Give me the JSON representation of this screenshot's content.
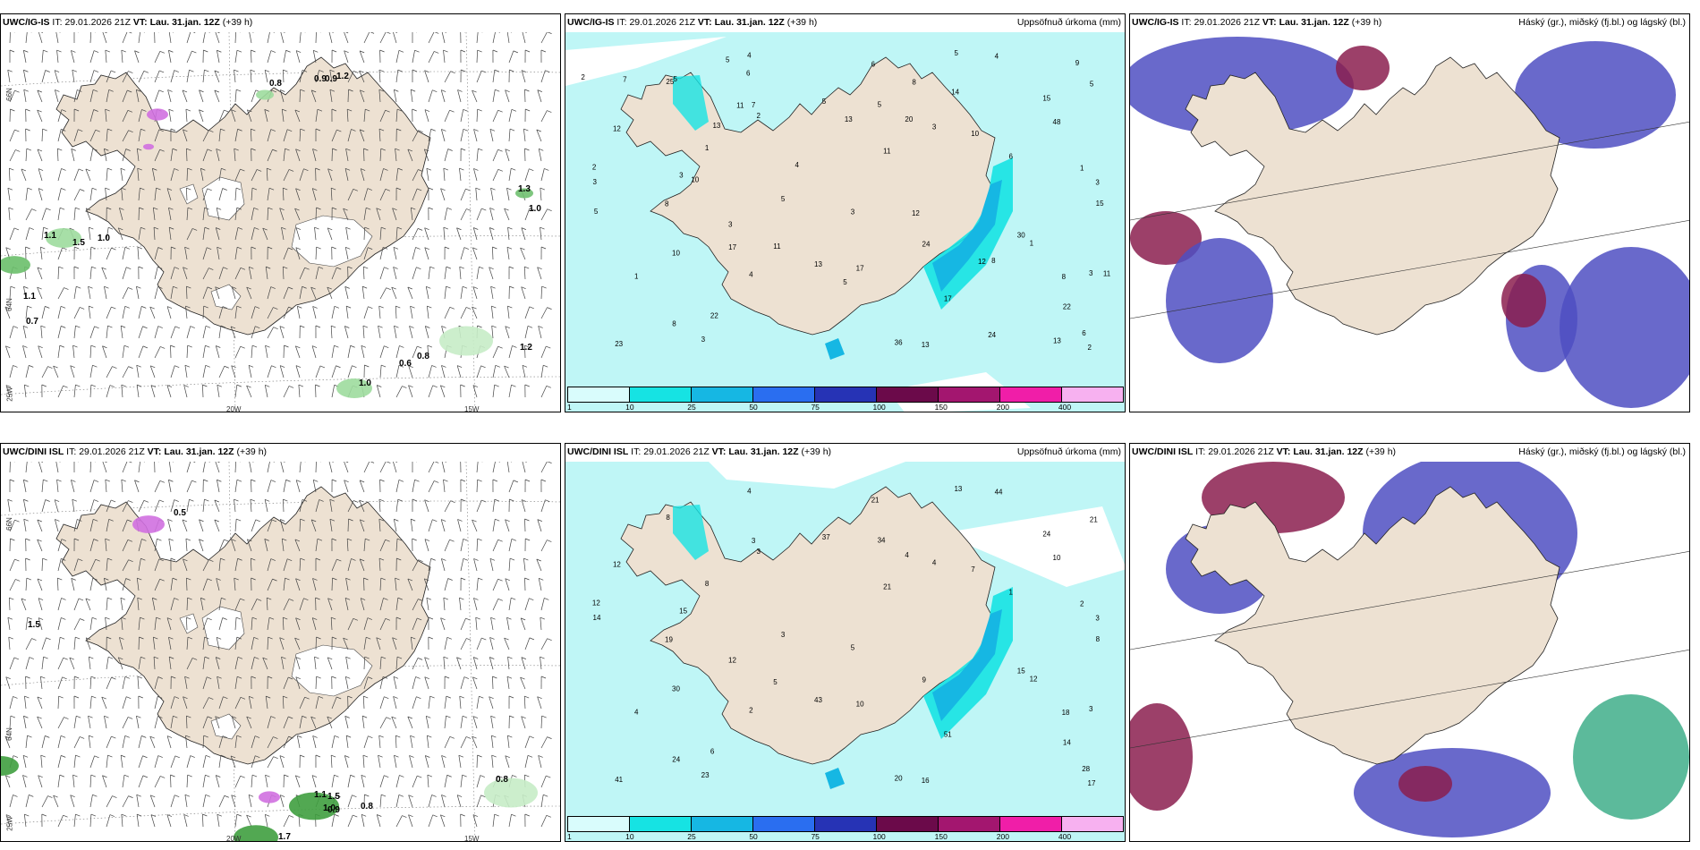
{
  "panels": [
    {
      "id": "p1",
      "model": "UWC/IG-IS",
      "it_label": "IT:",
      "it": "29.01.2026 21Z",
      "vt_label": "VT:",
      "vt": "Lau. 31.jan. 12Z",
      "lead": "(+39 h)",
      "right_title": "",
      "type": "wind"
    },
    {
      "id": "p2",
      "model": "UWC/IG-IS",
      "it_label": "IT:",
      "it": "29.01.2026 21Z",
      "vt_label": "VT:",
      "vt": "Lau. 31.jan. 12Z",
      "lead": "(+39 h)",
      "right_title": "Uppsöfnuð úrkoma (mm)",
      "type": "precip"
    },
    {
      "id": "p3",
      "model": "UWC/IG-IS",
      "it_label": "IT:",
      "it": "29.01.2026 21Z",
      "vt_label": "VT:",
      "vt": "Lau. 31.jan. 12Z",
      "lead": "(+39 h)",
      "right_title": "Háský (gr.), miðský (fj.bl.) og lágský (bl.)",
      "type": "cloud"
    },
    {
      "id": "p4",
      "model": "UWC/DINI ISL",
      "it_label": "IT:",
      "it": "29.01.2026 21Z",
      "vt_label": "VT:",
      "vt": "Lau. 31.jan. 12Z",
      "lead": "(+39 h)",
      "right_title": "",
      "type": "wind"
    },
    {
      "id": "p5",
      "model": "UWC/DINI ISL",
      "it_label": "IT:",
      "it": "29.01.2026 21Z",
      "vt_label": "VT:",
      "vt": "Lau. 31.jan. 12Z",
      "lead": "(+39 h)",
      "right_title": "Uppsöfnuð úrkoma (mm)",
      "type": "precip"
    },
    {
      "id": "p6",
      "model": "UWC/DINI ISL",
      "it_label": "IT:",
      "it": "29.01.2026 21Z",
      "vt_label": "VT:",
      "vt": "Lau. 31.jan. 12Z",
      "lead": "(+39 h)",
      "right_title": "Háský (gr.), miðský (fj.bl.) og lágský (bl.)",
      "type": "cloud"
    }
  ],
  "axis_labels": {
    "lat66": "66N",
    "lat64": "64N",
    "lon25": "25W",
    "lon20": "20W",
    "lon15": "15W"
  },
  "colorbar": {
    "levels": [
      "1",
      "10",
      "25",
      "50",
      "75",
      "100",
      "150",
      "200",
      "400"
    ],
    "colors": [
      "#d9fcfc",
      "#16e3e3",
      "#16b7e3",
      "#2a6ef0",
      "#2633b5",
      "#6b0a4a",
      "#a3166f",
      "#f01ea8",
      "#f7b1f0"
    ]
  },
  "wind_labels_top": [
    "0.8",
    "0.9",
    "0.9",
    "1.2",
    "1.3",
    "1.0",
    "1.1",
    "1.5",
    "1.0",
    "1.1",
    "0.7",
    "1.2",
    "0.8",
    "0.6",
    "1.0"
  ],
  "wind_labels_bottom": [
    "0.5",
    "1.5",
    "1.1",
    "1.5",
    "1.0",
    "0.9",
    "0.8",
    "0.8",
    "1.7"
  ],
  "precip_top": [
    "2",
    "1",
    "3",
    "3",
    "5",
    "3",
    "11",
    "5",
    "8",
    "15",
    "1",
    "1",
    "6",
    "4",
    "1",
    "3",
    "3",
    "2",
    "4",
    "5",
    "6",
    "5",
    "8",
    "10",
    "11",
    "4",
    "23",
    "17",
    "36",
    "5",
    "3",
    "2",
    "8",
    "6",
    "3",
    "3",
    "15",
    "24",
    "48",
    "30",
    "13",
    "12",
    "13",
    "17",
    "22",
    "25",
    "20",
    "10",
    "7",
    "22",
    "13",
    "13",
    "24",
    "14",
    "17",
    "5",
    "13",
    "12",
    "8",
    "12",
    "11",
    "9",
    "4",
    "6",
    "11",
    "5",
    "7",
    "10",
    "5",
    "8",
    "2",
    "5"
  ],
  "precip_bottom": [
    "3",
    "2",
    "4",
    "3",
    "3",
    "3",
    "5",
    "13",
    "18",
    "24",
    "8",
    "12",
    "1",
    "2",
    "4",
    "5",
    "12",
    "12",
    "4",
    "37",
    "28",
    "34",
    "24",
    "30",
    "21",
    "44",
    "41",
    "51",
    "20",
    "21",
    "23",
    "17",
    "19",
    "21",
    "15",
    "14",
    "8",
    "9",
    "10",
    "15",
    "16",
    "12",
    "43",
    "10",
    "14",
    "8",
    "4",
    "7",
    "3",
    "6"
  ],
  "colors": {
    "land": "#ede1d2",
    "sea": "#ffffff",
    "precip_light": "#bff6f6",
    "precip_mid": "#16e3e3",
    "precip_high": "#16b7e3",
    "cloud_high": "#8b1f4f",
    "cloud_mid": "#4f4fc2",
    "cloud_low": "#4a90e2"
  }
}
